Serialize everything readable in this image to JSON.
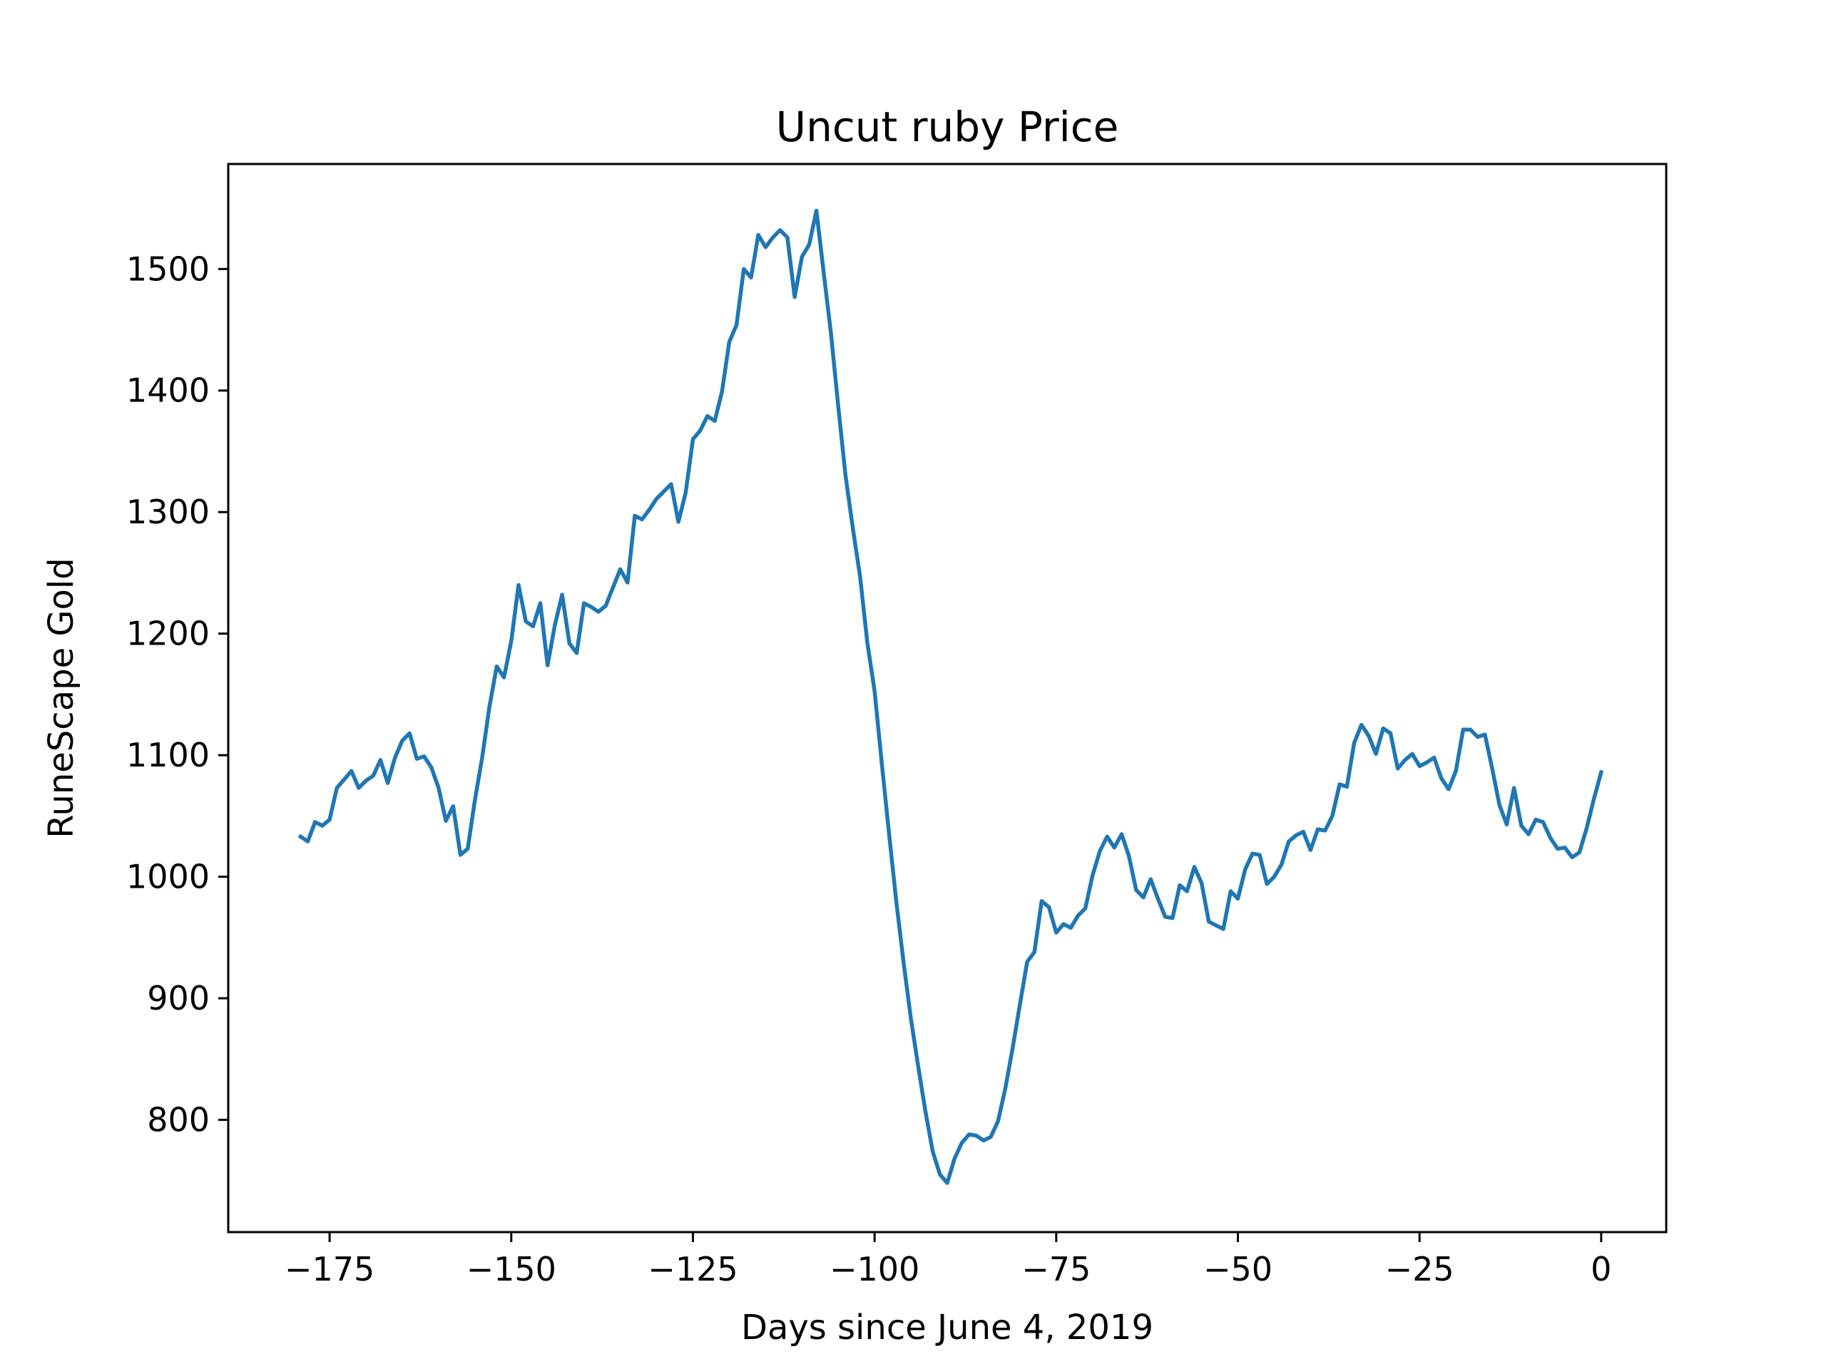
{
  "chart_data": {
    "type": "line",
    "title": "Uncut ruby Price",
    "xlabel": "Days since June 4, 2019",
    "ylabel": "RuneScape Gold",
    "xlim": [
      -188.95,
      8.95
    ],
    "ylim": [
      707.6,
      1586.4
    ],
    "xticks": [
      -175,
      -150,
      -125,
      -100,
      -75,
      -50,
      -25,
      0
    ],
    "xtick_labels": [
      "−175",
      "−150",
      "−125",
      "−100",
      "−75",
      "−50",
      "−25",
      "0"
    ],
    "yticks": [
      800,
      900,
      1000,
      1100,
      1200,
      1300,
      1400,
      1500
    ],
    "ytick_labels": [
      "800",
      "900",
      "1000",
      "1100",
      "1200",
      "1300",
      "1400",
      "1500"
    ],
    "grid": false,
    "line_color": "#1f77b4",
    "series": [
      {
        "x": [
          -179,
          -178,
          -177,
          -176,
          -175,
          -174,
          -173,
          -172,
          -171,
          -170,
          -169,
          -168,
          -167,
          -166,
          -165,
          -164,
          -163,
          -162,
          -161,
          -160,
          -159,
          -158,
          -157,
          -156,
          -155,
          -154,
          -153,
          -152,
          -151,
          -150,
          -149,
          -148,
          -147,
          -146,
          -145,
          -144,
          -143,
          -142,
          -141,
          -140,
          -139,
          -138,
          -137,
          -136,
          -135,
          -134,
          -133,
          -132,
          -131,
          -130,
          -129,
          -128,
          -127,
          -126,
          -125,
          -124,
          -123,
          -122,
          -121,
          -120,
          -119,
          -118,
          -117,
          -116,
          -115,
          -114,
          -113,
          -112,
          -111,
          -110,
          -109,
          -108,
          -107,
          -106,
          -105,
          -104,
          -103,
          -102,
          -101,
          -100,
          -99,
          -98,
          -97,
          -96,
          -95,
          -94,
          -93,
          -92,
          -91,
          -90,
          -89,
          -88,
          -87,
          -86,
          -85,
          -84,
          -83,
          -82,
          -81,
          -80,
          -79,
          -78,
          -77,
          -76,
          -75,
          -74,
          -73,
          -72,
          -71,
          -70,
          -69,
          -68,
          -67,
          -66,
          -65,
          -64,
          -63,
          -62,
          -61,
          -60,
          -59,
          -58,
          -57,
          -56,
          -55,
          -54,
          -53,
          -52,
          -51,
          -50,
          -49,
          -48,
          -47,
          -46,
          -45,
          -44,
          -43,
          -42,
          -41,
          -40,
          -39,
          -38,
          -37,
          -36,
          -35,
          -34,
          -33,
          -32,
          -31,
          -30,
          -29,
          -28,
          -27,
          -26,
          -25,
          -24,
          -23,
          -22,
          -21,
          -20,
          -19,
          -18,
          -17,
          -16,
          -15,
          -14,
          -13,
          -12,
          -11,
          -10,
          -9,
          -8,
          -7,
          -6,
          -5,
          -4,
          -3,
          -2,
          -1,
          0
        ],
        "y": [
          1033,
          1029,
          1045,
          1042,
          1047,
          1073,
          1080,
          1087,
          1073,
          1079,
          1083,
          1096,
          1077,
          1098,
          1112,
          1118,
          1097,
          1099,
          1090,
          1073,
          1046,
          1058,
          1018,
          1023,
          1063,
          1098,
          1140,
          1173,
          1164,
          1194,
          1240,
          1210,
          1206,
          1225,
          1174,
          1207,
          1232,
          1192,
          1184,
          1225,
          1222,
          1218,
          1223,
          1238,
          1253,
          1242,
          1297,
          1294,
          1302,
          1311,
          1317,
          1323,
          1292,
          1316,
          1360,
          1367,
          1379,
          1375,
          1399,
          1440,
          1454,
          1500,
          1493,
          1528,
          1518,
          1526,
          1532,
          1526,
          1477,
          1510,
          1520,
          1548,
          1497,
          1447,
          1387,
          1330,
          1287,
          1247,
          1193,
          1153,
          1093,
          1035,
          979,
          929,
          883,
          844,
          807,
          774,
          755,
          748,
          768,
          781,
          788,
          787,
          783,
          786,
          799,
          826,
          859,
          895,
          930,
          938,
          980,
          975,
          954,
          961,
          958,
          968,
          974,
          1001,
          1021,
          1033,
          1024,
          1035,
          1017,
          989,
          983,
          998,
          982,
          967,
          966,
          993,
          988,
          1008,
          995,
          963,
          960,
          957,
          988,
          982,
          1006,
          1019,
          1018,
          994,
          1000,
          1010,
          1029,
          1034,
          1037,
          1022,
          1039,
          1038,
          1050,
          1076,
          1074,
          1110,
          1125,
          1116,
          1101,
          1122,
          1118,
          1089,
          1096,
          1101,
          1091,
          1094,
          1098,
          1081,
          1072,
          1087,
          1121,
          1121,
          1115,
          1117,
          1089,
          1059,
          1043,
          1073,
          1042,
          1035,
          1047,
          1045,
          1032,
          1023,
          1024,
          1016,
          1020,
          1040,
          1064,
          1086
        ]
      }
    ]
  }
}
